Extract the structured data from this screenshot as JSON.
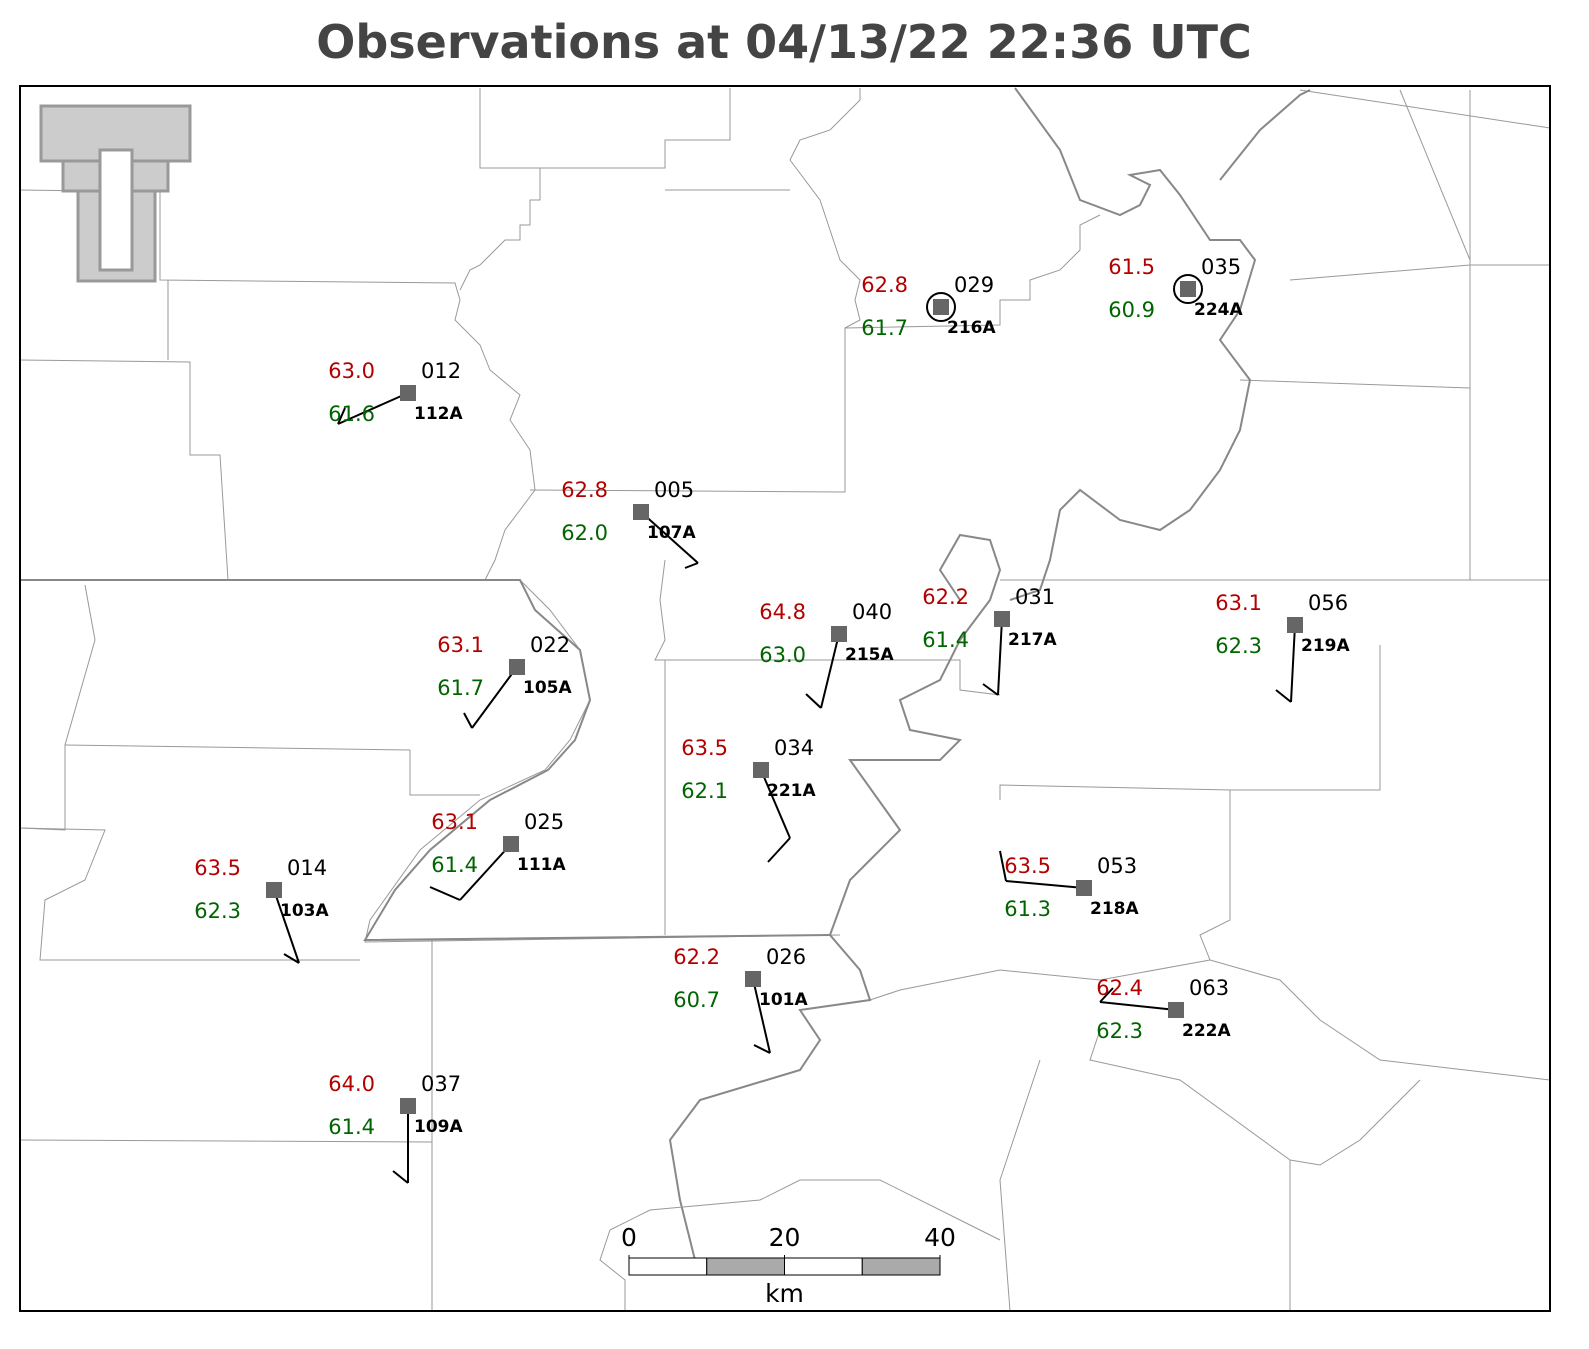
{
  "title": "Observations at 04/13/22 22:36 UTC",
  "stations": [
    {
      "temperature": "63.0",
      "dewpoint": "61.6",
      "id": "012",
      "label": "112A"
    },
    {
      "temperature": "62.8",
      "dewpoint": "62.0",
      "id": "005",
      "label": "107A"
    },
    {
      "temperature": "62.8",
      "dewpoint": "61.7",
      "id": "029",
      "label": "216A"
    },
    {
      "temperature": "61.5",
      "dewpoint": "60.9",
      "id": "035",
      "label": "224A"
    },
    {
      "temperature": "63.1",
      "dewpoint": "61.7",
      "id": "022",
      "label": "105A"
    },
    {
      "temperature": "64.8",
      "dewpoint": "63.0",
      "id": "040",
      "label": "215A"
    },
    {
      "temperature": "62.2",
      "dewpoint": "61.4",
      "id": "031",
      "label": "217A"
    },
    {
      "temperature": "63.1",
      "dewpoint": "62.3",
      "id": "056",
      "label": "219A"
    },
    {
      "temperature": "63.5",
      "dewpoint": "62.1",
      "id": "034",
      "label": "221A"
    },
    {
      "temperature": "63.1",
      "dewpoint": "61.4",
      "id": "025",
      "label": "111A"
    },
    {
      "temperature": "63.5",
      "dewpoint": "62.3",
      "id": "014",
      "label": "103A"
    },
    {
      "temperature": "63.5",
      "dewpoint": "61.3",
      "id": "053",
      "label": "218A"
    },
    {
      "temperature": "62.2",
      "dewpoint": "60.7",
      "id": "026",
      "label": "101A"
    },
    {
      "temperature": "62.4",
      "dewpoint": "62.3",
      "id": "063",
      "label": "222A"
    },
    {
      "temperature": "64.0",
      "dewpoint": "61.4",
      "id": "037",
      "label": "109A"
    }
  ],
  "scale_bar": {
    "ticks": [
      0,
      20,
      40
    ],
    "unit": "km"
  }
}
